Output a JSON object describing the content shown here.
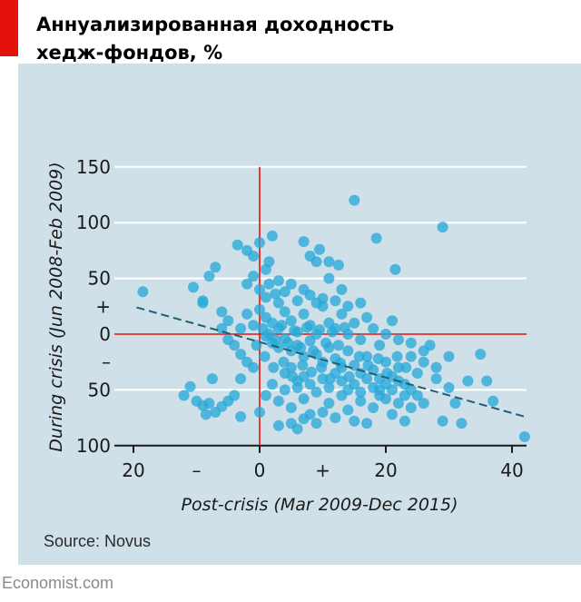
{
  "title_lines": [
    "Аннуализированная доходность",
    "хедж-фондов, %"
  ],
  "source": "Source: Novus",
  "brand": "Economist.com",
  "colors": {
    "accent": "#e3120b",
    "panel": "#cfe0e8",
    "points": "#29a9d9",
    "trend": "#1e5f78",
    "grid": "#ffffff"
  },
  "chart_data": {
    "type": "scatter",
    "xlabel": "Post-crisis (Mar 2009-Dec 2015)",
    "ylabel": "During crisis (Jun 2008-Feb 2009)",
    "xlim": [
      -21,
      42
    ],
    "ylim": [
      -100,
      150
    ],
    "grid": "horizontal",
    "x_ticks": [
      {
        "value": -20,
        "label": "20"
      },
      {
        "value": -10,
        "label": "–"
      },
      {
        "value": 0,
        "label": "0"
      },
      {
        "value": 10,
        "label": "+"
      },
      {
        "value": 20,
        "label": "20"
      },
      {
        "value": 40,
        "label": "40"
      }
    ],
    "y_ticks": [
      {
        "value": 150,
        "label": "150"
      },
      {
        "value": 100,
        "label": "100"
      },
      {
        "value": 50,
        "label": "50"
      },
      {
        "value": 25,
        "label": "+"
      },
      {
        "value": 0,
        "label": "0"
      },
      {
        "value": -25,
        "label": "–"
      },
      {
        "value": -50,
        "label": "50"
      },
      {
        "value": -100,
        "label": "100"
      }
    ],
    "trend_line": {
      "x": [
        -19.5,
        42
      ],
      "y": [
        24,
        -74
      ]
    },
    "points": [
      [
        -18.5,
        38
      ],
      [
        -10.5,
        42
      ],
      [
        -9,
        30
      ],
      [
        -8,
        52
      ],
      [
        -7,
        60
      ],
      [
        -3.5,
        80
      ],
      [
        -2,
        75
      ],
      [
        -1,
        70
      ],
      [
        0,
        82
      ],
      [
        1.5,
        65
      ],
      [
        2,
        88
      ],
      [
        1,
        58
      ],
      [
        7,
        83
      ],
      [
        8,
        70
      ],
      [
        9,
        65
      ],
      [
        9.5,
        76
      ],
      [
        12.5,
        62
      ],
      [
        15,
        120
      ],
      [
        18.5,
        86
      ],
      [
        21.5,
        58
      ],
      [
        29,
        96
      ],
      [
        11,
        50
      ],
      [
        2.5,
        36
      ],
      [
        3,
        28
      ],
      [
        5,
        45
      ],
      [
        -5,
        12
      ],
      [
        -6,
        20
      ],
      [
        -3,
        5
      ],
      [
        -2,
        18
      ],
      [
        -1,
        8
      ],
      [
        0,
        22
      ],
      [
        1,
        15
      ],
      [
        2,
        10
      ],
      [
        3,
        5
      ],
      [
        4,
        20
      ],
      [
        5,
        12
      ],
      [
        6,
        2
      ],
      [
        7,
        18
      ],
      [
        8,
        8
      ],
      [
        9,
        0
      ],
      [
        10,
        25
      ],
      [
        11,
        10
      ],
      [
        12,
        5
      ],
      [
        13,
        18
      ],
      [
        14,
        0
      ],
      [
        15,
        10
      ],
      [
        16,
        -5
      ],
      [
        17,
        15
      ],
      [
        18,
        5
      ],
      [
        19,
        -10
      ],
      [
        20,
        0
      ],
      [
        21,
        12
      ],
      [
        22,
        -5
      ],
      [
        1,
        -2
      ],
      [
        2,
        -8
      ],
      [
        3,
        -12
      ],
      [
        4,
        -4
      ],
      [
        5,
        -15
      ],
      [
        6,
        -10
      ],
      [
        7,
        -20
      ],
      [
        8,
        -6
      ],
      [
        9,
        -18
      ],
      [
        10,
        -25
      ],
      [
        11,
        -12
      ],
      [
        12,
        -22
      ],
      [
        13,
        -30
      ],
      [
        14,
        -15
      ],
      [
        15,
        -28
      ],
      [
        16,
        -35
      ],
      [
        17,
        -20
      ],
      [
        18,
        -32
      ],
      [
        19,
        -40
      ],
      [
        20,
        -25
      ],
      [
        21,
        -38
      ],
      [
        22,
        -30
      ],
      [
        23,
        -45
      ],
      [
        24,
        -20
      ],
      [
        25,
        -35
      ],
      [
        26,
        -15
      ],
      [
        27,
        -10
      ],
      [
        28,
        -40
      ],
      [
        30,
        -48
      ],
      [
        33,
        -42
      ],
      [
        35,
        -18
      ],
      [
        36,
        -42
      ],
      [
        37,
        -60
      ],
      [
        31,
        -62
      ],
      [
        29,
        -78
      ],
      [
        32,
        -80
      ],
      [
        42,
        -92
      ],
      [
        -1,
        -30
      ],
      [
        -2,
        -25
      ],
      [
        -3,
        -40
      ],
      [
        -4,
        -55
      ],
      [
        -5,
        -60
      ],
      [
        -6,
        -65
      ],
      [
        -7,
        -70
      ],
      [
        -8,
        -62
      ],
      [
        -9,
        -64
      ],
      [
        -11,
        -47
      ],
      [
        -12,
        -55
      ],
      [
        -3,
        -74
      ],
      [
        0,
        -70
      ],
      [
        1,
        -55
      ],
      [
        2,
        -45
      ],
      [
        3,
        -60
      ],
      [
        4,
        -50
      ],
      [
        5,
        -66
      ],
      [
        6,
        -48
      ],
      [
        7,
        -58
      ],
      [
        8,
        -72
      ],
      [
        9,
        -80
      ],
      [
        10,
        -70
      ],
      [
        11,
        -62
      ],
      [
        12,
        -75
      ],
      [
        13,
        -55
      ],
      [
        14,
        -68
      ],
      [
        15,
        -78
      ],
      [
        16,
        -60
      ],
      [
        17,
        -80
      ],
      [
        18,
        -66
      ],
      [
        19,
        -50
      ],
      [
        20,
        -58
      ],
      [
        21,
        -72
      ],
      [
        22,
        -62
      ],
      [
        23,
        -78
      ],
      [
        24,
        -66
      ],
      [
        25,
        -55
      ],
      [
        26,
        -62
      ],
      [
        4,
        -35
      ],
      [
        5,
        -30
      ],
      [
        6,
        -42
      ],
      [
        7,
        -38
      ],
      [
        8,
        -45
      ],
      [
        9,
        -52
      ],
      [
        10,
        -40
      ],
      [
        11,
        -48
      ],
      [
        12,
        -35
      ],
      [
        13,
        -42
      ],
      [
        14,
        -50
      ],
      [
        15,
        -45
      ],
      [
        16,
        -52
      ],
      [
        17,
        -40
      ],
      [
        18,
        -48
      ],
      [
        19,
        -55
      ],
      [
        20,
        -45
      ],
      [
        21,
        -50
      ],
      [
        22,
        -42
      ],
      [
        23,
        -55
      ],
      [
        24,
        -50
      ],
      [
        0.5,
        5
      ],
      [
        1.5,
        0
      ],
      [
        2.5,
        -5
      ],
      [
        3.5,
        8
      ],
      [
        4.5,
        -8
      ],
      [
        5.5,
        3
      ],
      [
        6.5,
        -12
      ],
      [
        7.5,
        6
      ],
      [
        8.5,
        -15
      ],
      [
        9.5,
        4
      ],
      [
        10.5,
        -8
      ],
      [
        11.5,
        2
      ],
      [
        12.5,
        -10
      ],
      [
        13.5,
        6
      ],
      [
        6,
        30
      ],
      [
        7,
        40
      ],
      [
        8,
        35
      ],
      [
        9,
        28
      ],
      [
        10,
        32
      ],
      [
        -2,
        45
      ],
      [
        0,
        40
      ],
      [
        3,
        48
      ],
      [
        1,
        33
      ],
      [
        4,
        38
      ],
      [
        12,
        30
      ],
      [
        14,
        25
      ],
      [
        16,
        28
      ],
      [
        -4,
        -10
      ],
      [
        -3,
        -18
      ],
      [
        -5,
        -5
      ],
      [
        24,
        -8
      ],
      [
        26,
        -25
      ],
      [
        28,
        -30
      ],
      [
        30,
        -20
      ],
      [
        5,
        -80
      ],
      [
        6,
        -85
      ],
      [
        7,
        -76
      ],
      [
        3,
        -82
      ],
      [
        -0.5,
        -10
      ],
      [
        0.8,
        -20
      ],
      [
        2.2,
        -30
      ],
      [
        3.8,
        -25
      ],
      [
        5.2,
        -38
      ],
      [
        6.8,
        -28
      ],
      [
        8.2,
        -34
      ],
      [
        9.8,
        -30
      ],
      [
        11.2,
        -40
      ],
      [
        12.8,
        -26
      ],
      [
        14.2,
        -38
      ],
      [
        15.8,
        -20
      ],
      [
        17.2,
        -28
      ],
      [
        18.8,
        -22
      ],
      [
        20.2,
        -35
      ],
      [
        21.8,
        -20
      ],
      [
        23.2,
        -30
      ],
      [
        13,
        40
      ],
      [
        -6,
        5
      ],
      [
        -1,
        52
      ],
      [
        -9,
        28
      ],
      [
        11,
        65
      ],
      [
        -7.5,
        -40
      ],
      [
        -10,
        -60
      ],
      [
        -8.5,
        -72
      ],
      [
        1.5,
        45
      ]
    ]
  }
}
